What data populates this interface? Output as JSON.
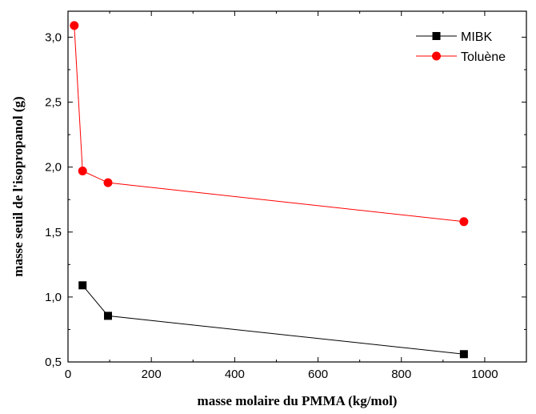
{
  "chart_data": {
    "type": "line",
    "xlabel": "masse molaire du PMMA (kg/mol)",
    "ylabel": "masse seuil de l'isopropanol (g)",
    "xlim": [
      0,
      1100
    ],
    "ylim": [
      0.5,
      3.2
    ],
    "x_ticks": [
      0,
      200,
      400,
      600,
      800,
      1000
    ],
    "x_tick_labels": [
      "0",
      "200",
      "400",
      "600",
      "800",
      "1000"
    ],
    "y_ticks": [
      0.5,
      1.0,
      1.5,
      2.0,
      2.5,
      3.0
    ],
    "y_tick_labels": [
      "0,5",
      "1,0",
      "1,5",
      "2,0",
      "2,5",
      "3,0"
    ],
    "grid": false,
    "legend_position": "top-right",
    "series": [
      {
        "name": "MIBK",
        "color": "#000000",
        "marker": "square",
        "x": [
          35,
          96,
          950
        ],
        "y": [
          1.09,
          0.855,
          0.56
        ]
      },
      {
        "name": "Toluène",
        "color": "#ff0000",
        "marker": "circle",
        "x": [
          15,
          35,
          96,
          950
        ],
        "y": [
          3.09,
          1.97,
          1.88,
          1.58
        ]
      }
    ]
  }
}
